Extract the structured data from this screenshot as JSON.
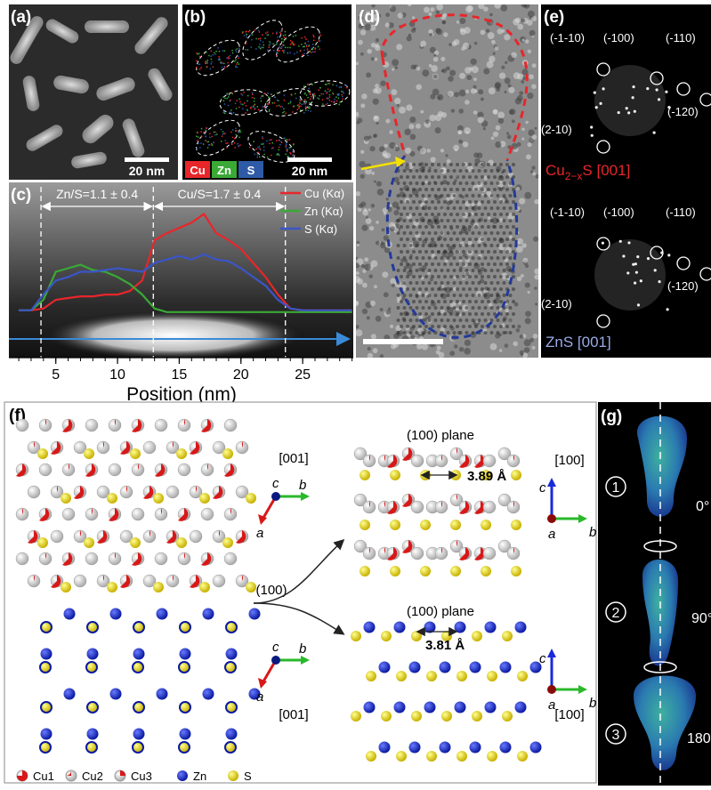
{
  "panel_a": {
    "label": "(a)",
    "scale_bar": "20 nm"
  },
  "panel_b": {
    "label": "(b)",
    "scale_bar": "20 nm",
    "legend": [
      {
        "name": "Cu",
        "color": "#e8262a"
      },
      {
        "name": "Zn",
        "color": "#3aa935"
      },
      {
        "name": "S",
        "color": "#2f5aa8"
      }
    ]
  },
  "chart_data": {
    "type": "line",
    "label": "(c)",
    "x_label": "Position (nm)",
    "x": [
      2,
      3,
      4,
      5,
      6,
      7,
      8,
      9,
      10,
      11,
      12,
      13,
      14,
      15,
      16,
      17,
      18,
      19,
      20,
      21,
      22,
      23,
      24,
      25,
      26,
      27,
      28,
      29
    ],
    "series": [
      {
        "name": "Cu (Kα)",
        "color": "#e8262a",
        "values": [
          27,
          27,
          28,
          33,
          34,
          35,
          35,
          36,
          36,
          38,
          44,
          67,
          71,
          74,
          77,
          82,
          71,
          67,
          62,
          54,
          46,
          36,
          28,
          27,
          27,
          27,
          27,
          27
        ]
      },
      {
        "name": "Zn (Kα)",
        "color": "#3aa935",
        "values": [
          27,
          27,
          33,
          49,
          51,
          53,
          50,
          49,
          46,
          42,
          36,
          28,
          26,
          26,
          26,
          26,
          26,
          26,
          26,
          26,
          26,
          26,
          26,
          26,
          26,
          26,
          26,
          26
        ]
      },
      {
        "name": "S (Kα)",
        "color": "#3b55c8",
        "values": [
          27,
          27,
          36,
          44,
          46,
          49,
          49,
          50,
          51,
          50,
          49,
          54,
          56,
          58,
          56,
          59,
          56,
          55,
          51,
          46,
          41,
          33,
          28,
          27,
          27,
          27,
          27,
          27
        ]
      }
    ],
    "xlim": [
      1.2,
      29.1
    ],
    "ylim": [
      0,
      100
    ],
    "xticks": [
      5,
      10,
      15,
      20,
      25
    ],
    "boundaries": [
      3.8,
      12.9,
      23.6
    ],
    "annotations": [
      {
        "text": "Zn/S=1.1 ± 0.4",
        "from": 3.8,
        "to": 12.9
      },
      {
        "text": "Cu/S=1.7 ± 0.4",
        "from": 12.9,
        "to": 23.6
      }
    ]
  },
  "panel_d": {
    "label": "(d)"
  },
  "panel_e": {
    "label": "(e)",
    "top": {
      "spots": [
        "(-1-10)",
        "(-100)",
        "(-110)",
        "(-120)",
        "(2-10)"
      ],
      "zone": {
        "base": "Cu",
        "sub": "2−x",
        "rest": "S [001]"
      }
    },
    "bottom": {
      "spots": [
        "(-1-10)",
        "(-100)",
        "(-110)",
        "(-120)",
        "(2-10)"
      ],
      "zone": "ZnS [001]"
    }
  },
  "panel_f": {
    "label": "(f)",
    "left_top_zone": "[001]",
    "left_bottom_zone": "[001]",
    "split": "(100)",
    "axes_left": [
      "c",
      "b",
      "a"
    ],
    "top_plane": {
      "title": "(100) plane",
      "distance": "3.89 Å",
      "zone": "[100]",
      "axes": [
        "c",
        "a",
        "b"
      ]
    },
    "bottom_plane": {
      "title": "(100) plane",
      "distance": "3.81 Å",
      "zone": "[100]",
      "axes": [
        "c",
        "a",
        "b"
      ]
    },
    "legend": [
      "Cu1",
      "Cu2",
      "Cu3",
      "Zn",
      "S"
    ]
  },
  "panel_g": {
    "label": "(g)",
    "steps": [
      {
        "number": "1",
        "angle": "0°"
      },
      {
        "number": "2",
        "angle": "90°"
      },
      {
        "number": "3",
        "angle": "180°"
      }
    ]
  }
}
